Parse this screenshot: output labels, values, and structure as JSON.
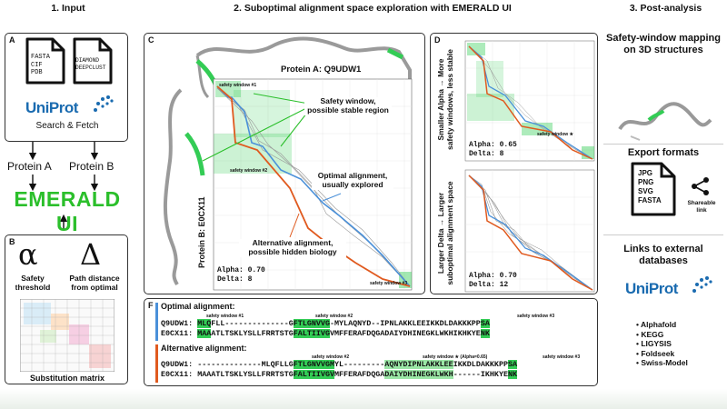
{
  "sections": {
    "input": "1. Input",
    "exploration": "2. Suboptimal alignment space exploration with EMERALD UI",
    "post": "3. Post-analysis"
  },
  "panel_a": {
    "label": "A",
    "file1_lines": [
      "FASTA",
      "CIF",
      "PDB"
    ],
    "file2_lines": [
      "DIAMOND",
      "DEEPCLUST"
    ],
    "uniprot_logo": "UniProt",
    "search_fetch": "Search & Fetch"
  },
  "protein_a_label": "Protein A",
  "protein_b_label": "Protein B",
  "emerald_ui": "EMERALD UI",
  "panel_b": {
    "label": "B",
    "alpha_symbol": "α",
    "delta_symbol": "Δ",
    "alpha_caption": "Safety threshold",
    "delta_caption": "Path distance from optimal",
    "matrix_caption": "Substitution matrix"
  },
  "panel_c": {
    "label": "C",
    "protein_a": "Protein A: Q9UDW1",
    "protein_b": "Protein B: E0CX11",
    "sw1": "safety window #1",
    "sw2": "safety window #2",
    "sw3": "safety window #3",
    "ann_safety": "Safety window, possible stable region",
    "ann_optimal": "Optimal alignment, usually explored",
    "ann_alt": "Alternative alignment, possible hidden biology",
    "alpha": "Alpha: 0.70",
    "delta": "Delta: 8"
  },
  "panel_d": {
    "label": "D",
    "top_side": "Smaller Alpha → More safety windows, less stable",
    "top_alpha": "Alpha: 0.65",
    "top_delta": "Delta: 8",
    "top_sw": "safety window ★",
    "bottom_side": "Larger Delta → Larger suboptimal alignment space",
    "bottom_alpha": "Alpha: 0.70",
    "bottom_delta": "Delta: 12"
  },
  "panel_f": {
    "label": "F",
    "optimal_title": "Optimal alignment:",
    "alt_title": "Alternative alignment:",
    "opt_sw1": "safety window #1",
    "opt_sw2": "safety window #2",
    "opt_sw3": "safety window #3",
    "alt_sw2": "safety window #2",
    "alt_star": "safety window ★ (Alpha=0.65)",
    "alt_sw3": "safety window #3",
    "opt_q_name": "Q9UDW1:",
    "opt_e_name": "E0CX11:",
    "alt_q_name": "Q9UDW1:",
    "alt_e_name": "E0CX11:",
    "opt_q": [
      " ",
      "MLQ",
      "FLL--------------G",
      "FTLGNVVG",
      "-MYLAQNYD--IPNLAKKLEEIKKDLDAKKKPP",
      "SA"
    ],
    "opt_e": [
      " ",
      "MAA",
      "ATLTSKLYSLLFRRTSTG",
      "FALTIIVG",
      "VMFFERAFDQGADAIYDHINEGKLWKHIKHKYE",
      "NK"
    ],
    "alt_q": [
      " --------------MLQFLLG",
      "FTLGNVVGM",
      "YL---------",
      "AQNYDIPNLAKKLEE",
      "IKKDLDAKKKPP",
      "SA"
    ],
    "alt_e": [
      " MAAATLTSKLYSLLFRRTSTG",
      "FALTIIVGV",
      "MFFERAFDQGA",
      "DAIYDHINEGKLWKH",
      "------IKHKYE",
      "NK"
    ]
  },
  "post": {
    "safety_title": "Safety-window mapping on 3D structures",
    "export_title": "Export formats",
    "formats": [
      "JPG",
      "PNG",
      "SVG",
      "FASTA"
    ],
    "share": "Shareable link",
    "links_title": "Links to external databases",
    "uniprot_logo": "UniProt",
    "db_list": [
      "Alphafold",
      "KEGG",
      "LIGYSIS",
      "Foldseek",
      "Swiss-Model"
    ]
  },
  "colors": {
    "optimal": "#4a90d9",
    "alternative": "#e05a1f",
    "safety": "#33cc55",
    "emerald": "#2bbf2b",
    "uniprot": "#1a6bb0"
  }
}
